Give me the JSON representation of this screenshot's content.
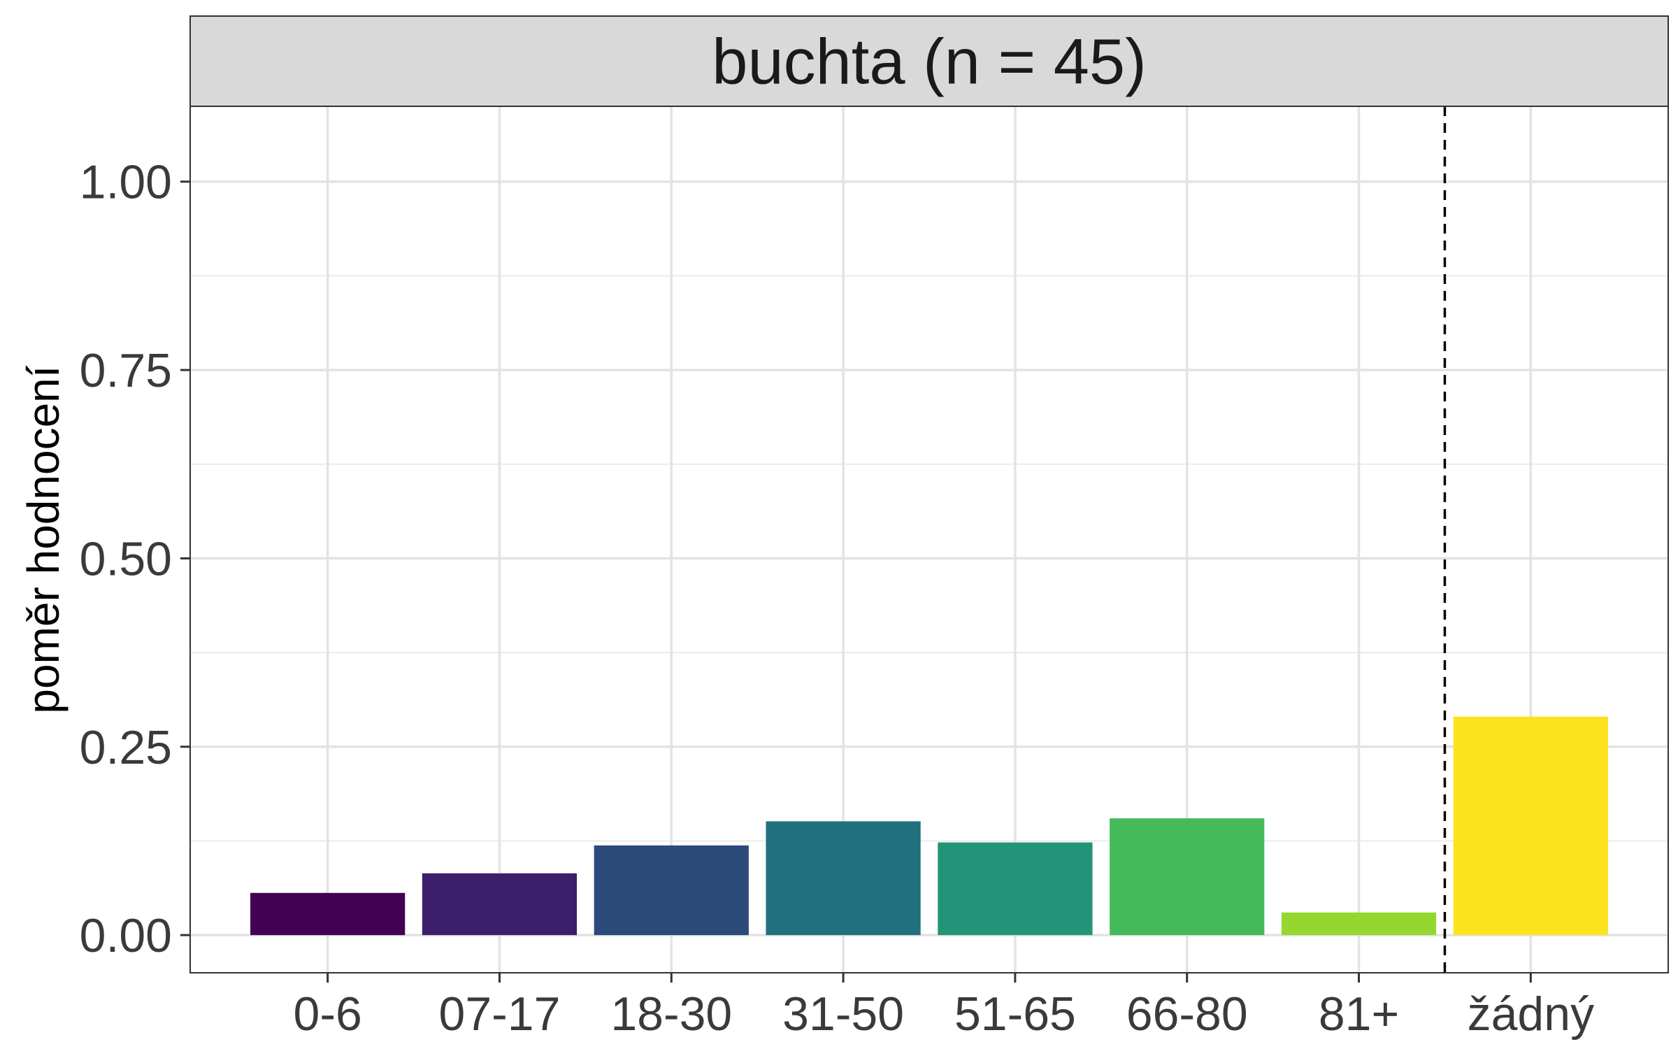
{
  "chart_data": {
    "type": "bar",
    "facet_title": "buchta (n = 45)",
    "ylabel": "poměr hodnocení",
    "xlabel": "",
    "categories": [
      "0-6",
      "07-17",
      "18-30",
      "31-50",
      "51-65",
      "66-80",
      "81+",
      "žádný"
    ],
    "values": [
      0.056,
      0.082,
      0.119,
      0.151,
      0.123,
      0.155,
      0.03,
      0.29
    ],
    "colors": [
      "#440154",
      "#3B1F6B",
      "#2C4B7B",
      "#21707D",
      "#229578",
      "#44BA5A",
      "#94D72E",
      "#FDE31E"
    ],
    "ylim": [
      -0.05,
      1.1
    ],
    "yticks": [
      0,
      0.25,
      0.5,
      0.75,
      1.0
    ],
    "ytick_labels": [
      "0.00",
      "0.25",
      "0.50",
      "0.75",
      "1.00"
    ],
    "reference_line": {
      "type": "vertical-dashed",
      "between": [
        "81+",
        "žádný"
      ]
    },
    "grid": true,
    "theme": "bw"
  }
}
